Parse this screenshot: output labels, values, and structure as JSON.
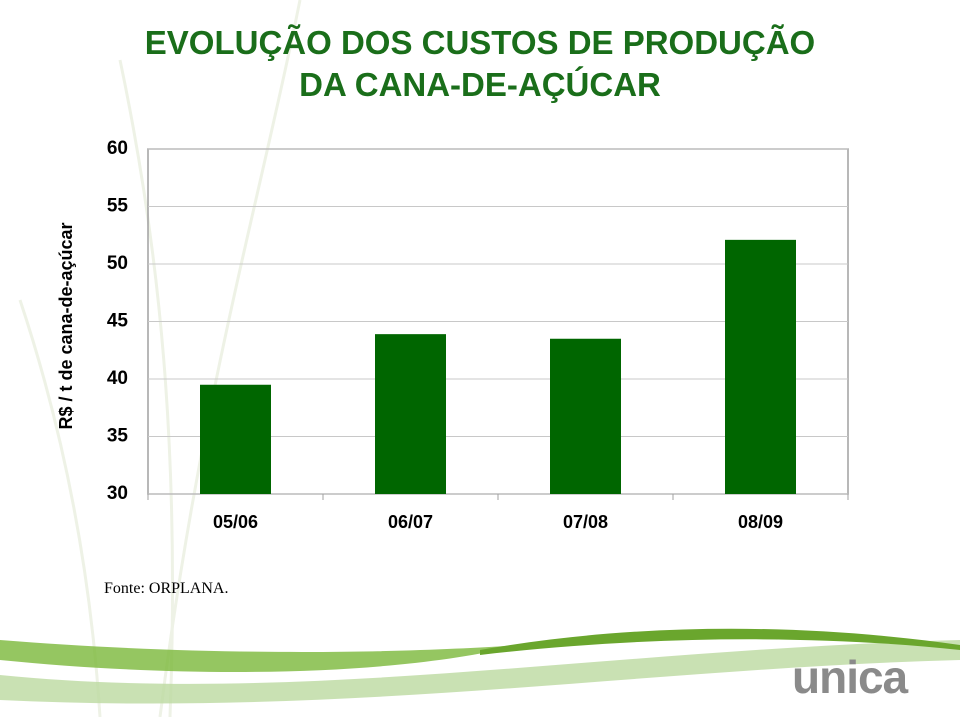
{
  "chart_data": {
    "type": "bar",
    "title": "EVOLUÇÃO DOS CUSTOS DE PRODUÇÃO DA CANA-DE-AÇÚCAR",
    "y_label": "R$ / t de cana-de-açúcar",
    "categories": [
      "05/06",
      "06/07",
      "07/08",
      "08/09"
    ],
    "values": [
      39.5,
      43.9,
      43.5,
      52.1
    ],
    "color": "#006600",
    "ylim": [
      30,
      60
    ],
    "yticks": [
      30,
      35,
      40,
      45,
      50,
      55,
      60
    ],
    "grid": true,
    "source": "Fonte: ORPLANA.",
    "logo": "unica"
  }
}
